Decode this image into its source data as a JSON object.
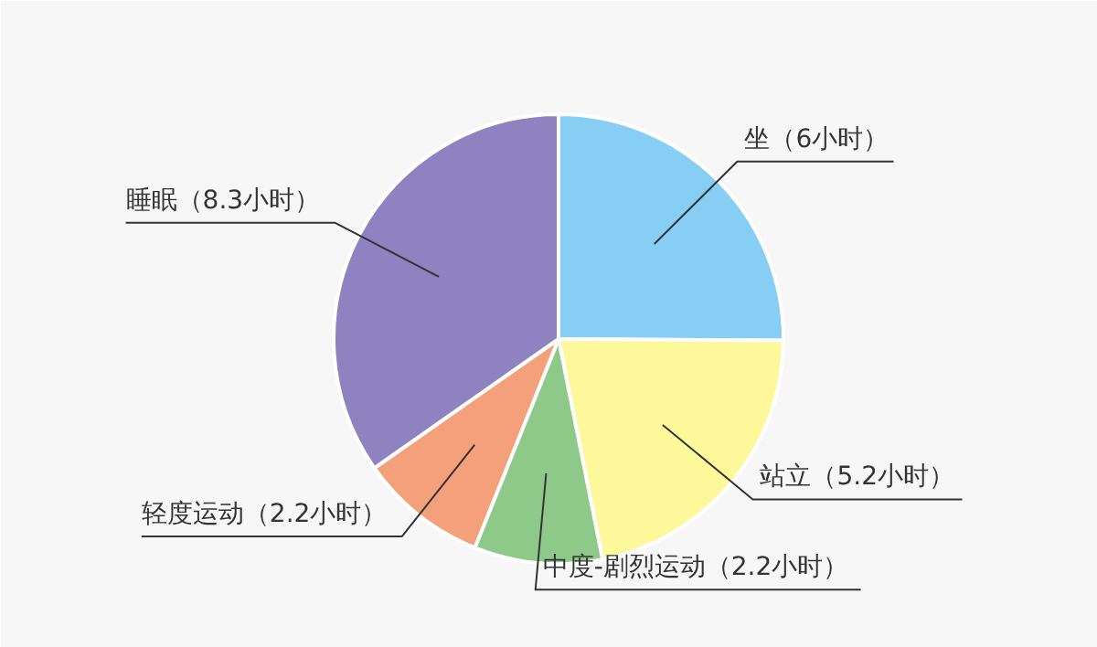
{
  "chart_data": {
    "type": "pie",
    "categories": [
      "坐（6小时）",
      "站立（5.2小时）",
      "中度-剧烈运动（2.2小时）",
      "轻度运动（2.2小时）",
      "睡眠（8.3小时）"
    ],
    "values": [
      6,
      5.2,
      2.2,
      2.2,
      8.3
    ],
    "colors": [
      "#87cef5",
      "#fdf89a",
      "#8fc98a",
      "#f4a07a",
      "#8e82c0"
    ]
  }
}
